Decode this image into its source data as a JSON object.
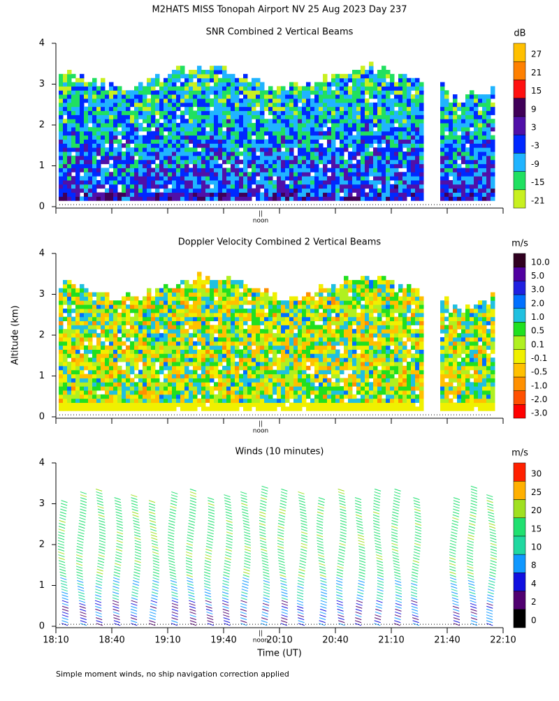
{
  "suptitle": "M2HATS MISS Tonopah Airport NV  25 Aug 2023 Day 237",
  "ylabel": "Altitude (km)",
  "noon_label": "noon",
  "footnote": "Simple moment winds, no ship navigation correction applied",
  "chart_data": [
    {
      "type": "heatmap",
      "title": "SNR Combined 2 Vertical Beams",
      "colorbar_label": "dB",
      "colorbar_ticks": [
        -21,
        -15,
        -9,
        -3,
        3,
        9,
        15,
        21,
        27
      ],
      "colorbar_colors": [
        "#c8f020",
        "#20e060",
        "#20b4ff",
        "#0028ff",
        "#5010a8",
        "#400058",
        "#ff1010",
        "#ff8000",
        "#ffc000"
      ],
      "ylim": [
        0,
        4
      ],
      "yticks": [
        0,
        1,
        2,
        3,
        4
      ]
    },
    {
      "type": "heatmap",
      "title": "Doppler Velocity Combined 2 Vertical Beams",
      "colorbar_label": "m/s",
      "colorbar_ticks": [
        {
          "value": -3,
          "label": "-3.0"
        },
        {
          "value": -2,
          "label": "-2.0"
        },
        {
          "value": -1,
          "label": "-1.0"
        },
        -0.5,
        -0.1,
        0.1,
        0.5,
        {
          "value": 1,
          "label": "1.0"
        },
        {
          "value": 2,
          "label": "2.0"
        },
        {
          "value": 3,
          "label": "3.0"
        },
        {
          "value": 5,
          "label": "5.0"
        },
        {
          "value": 10,
          "label": "10.0"
        }
      ],
      "colorbar_colors": [
        "#ff0000",
        "#ff5000",
        "#ff9000",
        "#ffc000",
        "#f0f000",
        "#b0f020",
        "#20e020",
        "#20c0e0",
        "#0070ff",
        "#2020e0",
        "#5000a0",
        "#300020"
      ],
      "ylim": [
        0,
        4
      ],
      "yticks": [
        0,
        1,
        2,
        3,
        4
      ]
    },
    {
      "type": "barbs",
      "title": "Winds (10 minutes)",
      "colorbar_label": "m/s",
      "colorbar_ticks": [
        0,
        2,
        4,
        8,
        10,
        15,
        20,
        25,
        30
      ],
      "colorbar_colors": [
        "#000000",
        "#500070",
        "#1010e0",
        "#1098ff",
        "#20d8a0",
        "#20e070",
        "#a0e020",
        "#ffb000",
        "#ff2000"
      ],
      "ylim": [
        0,
        4
      ],
      "yticks": [
        0,
        1,
        2,
        3,
        4
      ],
      "xlabel": "Time (UT)",
      "xticks": [
        "18:10",
        "18:40",
        "19:10",
        "19:40",
        "20:10",
        "20:40",
        "21:10",
        "21:40",
        "22:10"
      ]
    }
  ]
}
